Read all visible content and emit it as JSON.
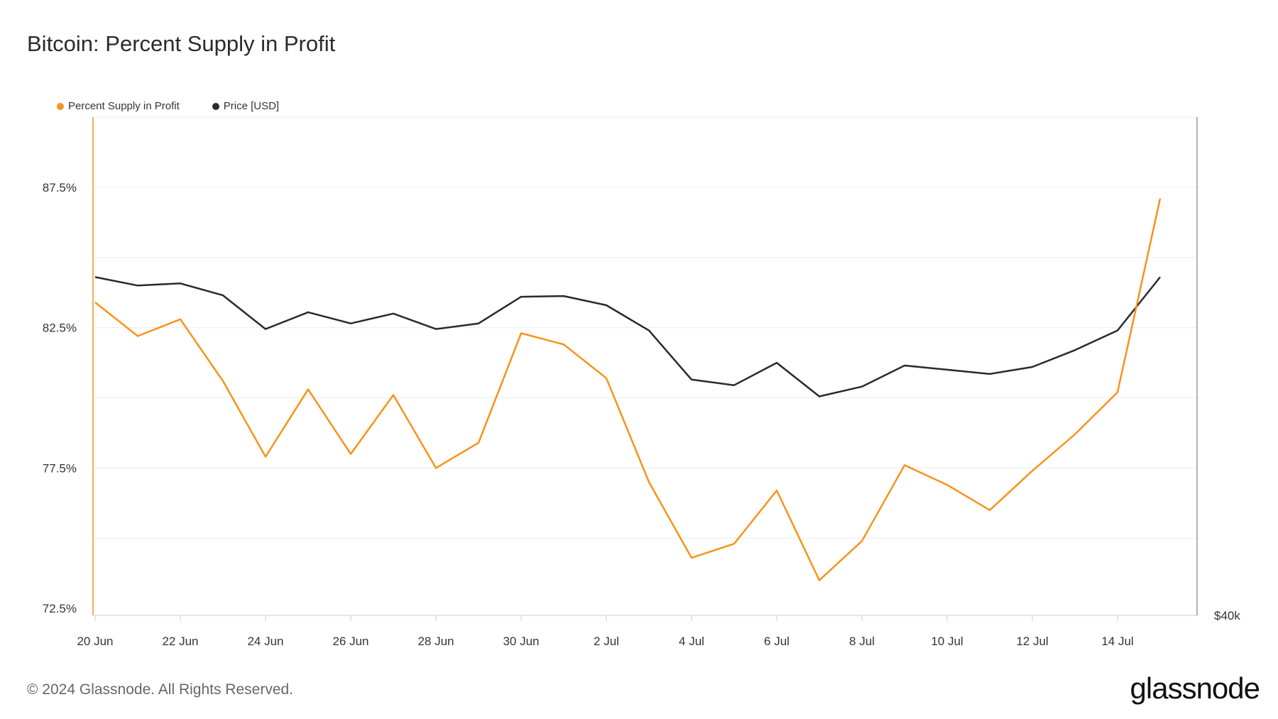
{
  "header": {
    "title": "Bitcoin: Percent Supply in Profit"
  },
  "footer": {
    "copyright": "© 2024 Glassnode. All Rights Reserved.",
    "logo": "glassnode"
  },
  "colors": {
    "supply": "#f7931a",
    "price": "#2a2a2a",
    "grid": "#ececec",
    "axis": "#cccccc"
  },
  "chart_data": {
    "type": "line",
    "title": "Bitcoin: Percent Supply in Profit",
    "legend_position": "top-left",
    "grid": true,
    "x_tick_labels": [
      "20 Jun",
      "22 Jun",
      "24 Jun",
      "26 Jun",
      "28 Jun",
      "30 Jun",
      "2 Jul",
      "4 Jul",
      "6 Jul",
      "8 Jul",
      "10 Jul",
      "12 Jul",
      "14 Jul"
    ],
    "x": [
      "20 Jun",
      "21 Jun",
      "22 Jun",
      "23 Jun",
      "24 Jun",
      "25 Jun",
      "26 Jun",
      "27 Jun",
      "28 Jun",
      "29 Jun",
      "30 Jun",
      "1 Jul",
      "2 Jul",
      "3 Jul",
      "4 Jul",
      "5 Jul",
      "6 Jul",
      "7 Jul",
      "8 Jul",
      "9 Jul",
      "10 Jul",
      "11 Jul",
      "12 Jul",
      "13 Jul",
      "14 Jul",
      "15 Jul"
    ],
    "y_left": {
      "ticks": [
        "87.5%",
        "82.5%",
        "77.5%",
        "72.5%"
      ],
      "tick_values": [
        87.5,
        82.5,
        77.5,
        72.5
      ],
      "range": [
        72.25,
        90.0
      ]
    },
    "y_right": {
      "ticks": [
        "$40k"
      ],
      "tick_values": [
        40000
      ],
      "range": [
        40000,
        75500
      ]
    },
    "series": [
      {
        "name": "Percent Supply in Profit",
        "axis": "left",
        "values": [
          83.4,
          82.2,
          82.8,
          80.6,
          77.9,
          80.3,
          78.0,
          80.1,
          77.5,
          78.4,
          82.3,
          81.9,
          80.7,
          77.0,
          74.3,
          74.8,
          76.7,
          73.5,
          74.9,
          77.6,
          76.9,
          76.0,
          77.4,
          78.7,
          80.2,
          87.1
        ]
      },
      {
        "name": "Price [USD]",
        "axis": "right",
        "values": [
          64100,
          63500,
          63650,
          62800,
          60400,
          61600,
          60800,
          61500,
          60400,
          60800,
          62700,
          62750,
          62100,
          60300,
          56800,
          56400,
          58000,
          55600,
          56300,
          57800,
          57500,
          57200,
          57700,
          58900,
          60300,
          64100
        ]
      }
    ]
  }
}
